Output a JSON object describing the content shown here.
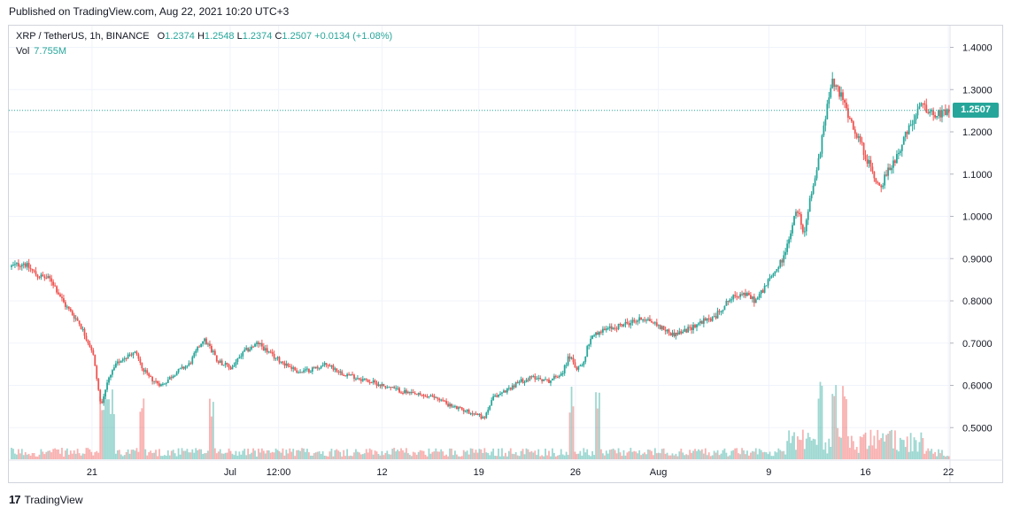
{
  "header": {
    "published": "Published on TradingView.com, Aug 22, 2021 10:20 UTC+3"
  },
  "legend": {
    "symbol": "XRP / TetherUS, 1h, BINANCE",
    "open_label": "O",
    "open": "1.2374",
    "high_label": "H",
    "high": "1.2548",
    "low_label": "L",
    "low": "1.2374",
    "close_label": "C",
    "close": "1.2507",
    "change": "+0.0134 (+1.08%)",
    "vol_label": "Vol",
    "vol": "7.755M"
  },
  "footer": {
    "brand": "TradingView",
    "logo": "17"
  },
  "colors": {
    "up": "#26a69a",
    "down": "#ef5350",
    "grid": "#f0f3fa",
    "axis_text": "#131722"
  },
  "chart_data": {
    "type": "candlestick",
    "title": "XRP / TetherUS, 1h, BINANCE",
    "last_price": "1.2507",
    "ylim": [
      0.43,
      1.43
    ],
    "y_ticks": [
      "0.5000",
      "0.6000",
      "0.7000",
      "0.8000",
      "0.9000",
      "1.0000",
      "1.1000",
      "1.2000",
      "1.3000",
      "1.4000"
    ],
    "x_ticks": [
      {
        "label": "21",
        "day": 5.83
      },
      {
        "label": "Jul",
        "day": 15.83
      },
      {
        "label": "12:00",
        "day": 19.33
      },
      {
        "label": "12",
        "day": 26.83
      },
      {
        "label": "19",
        "day": 33.83
      },
      {
        "label": "26",
        "day": 40.83
      },
      {
        "label": "Aug",
        "day": 46.83
      },
      {
        "label": "9",
        "day": 54.83
      },
      {
        "label": "16",
        "day": 61.83
      },
      {
        "label": "22",
        "day": 67.83
      }
    ],
    "price_path": {
      "days": [
        0,
        1,
        2,
        3,
        4,
        5,
        6,
        6.6,
        7,
        7.5,
        8,
        9,
        10,
        11,
        12,
        13,
        14,
        14.5,
        15,
        16,
        17,
        18,
        19,
        20,
        21,
        22,
        23,
        24,
        25,
        26,
        27,
        28,
        29,
        30,
        31,
        32,
        33,
        34,
        34.3,
        35,
        36,
        37,
        38,
        39,
        40,
        40.5,
        41,
        41.5,
        42,
        43,
        44,
        45,
        46,
        47,
        48,
        49,
        50,
        51,
        52,
        53,
        54,
        55,
        56,
        57,
        57.5,
        58,
        58.5,
        59,
        59.5,
        60,
        61,
        62,
        62.5,
        63,
        64,
        65,
        66,
        67,
        68
      ],
      "prices": [
        0.88,
        0.89,
        0.86,
        0.85,
        0.79,
        0.75,
        0.68,
        0.55,
        0.6,
        0.64,
        0.66,
        0.68,
        0.62,
        0.6,
        0.63,
        0.65,
        0.71,
        0.69,
        0.66,
        0.64,
        0.68,
        0.7,
        0.67,
        0.65,
        0.63,
        0.64,
        0.65,
        0.63,
        0.62,
        0.61,
        0.6,
        0.59,
        0.58,
        0.575,
        0.57,
        0.55,
        0.54,
        0.53,
        0.52,
        0.57,
        0.59,
        0.61,
        0.62,
        0.61,
        0.63,
        0.67,
        0.64,
        0.65,
        0.71,
        0.73,
        0.74,
        0.75,
        0.76,
        0.74,
        0.72,
        0.73,
        0.75,
        0.76,
        0.8,
        0.82,
        0.8,
        0.85,
        0.9,
        1.02,
        0.96,
        1.05,
        1.12,
        1.22,
        1.32,
        1.3,
        1.22,
        1.14,
        1.1,
        1.07,
        1.13,
        1.2,
        1.26,
        1.24,
        1.25
      ]
    },
    "volume": {
      "label": "Vol",
      "last": "7.755M",
      "spike_days": [
        6.6,
        6.9,
        7.3,
        9.4,
        14.5,
        40.5,
        42.4,
        58.5,
        59.5,
        60.3
      ]
    }
  }
}
